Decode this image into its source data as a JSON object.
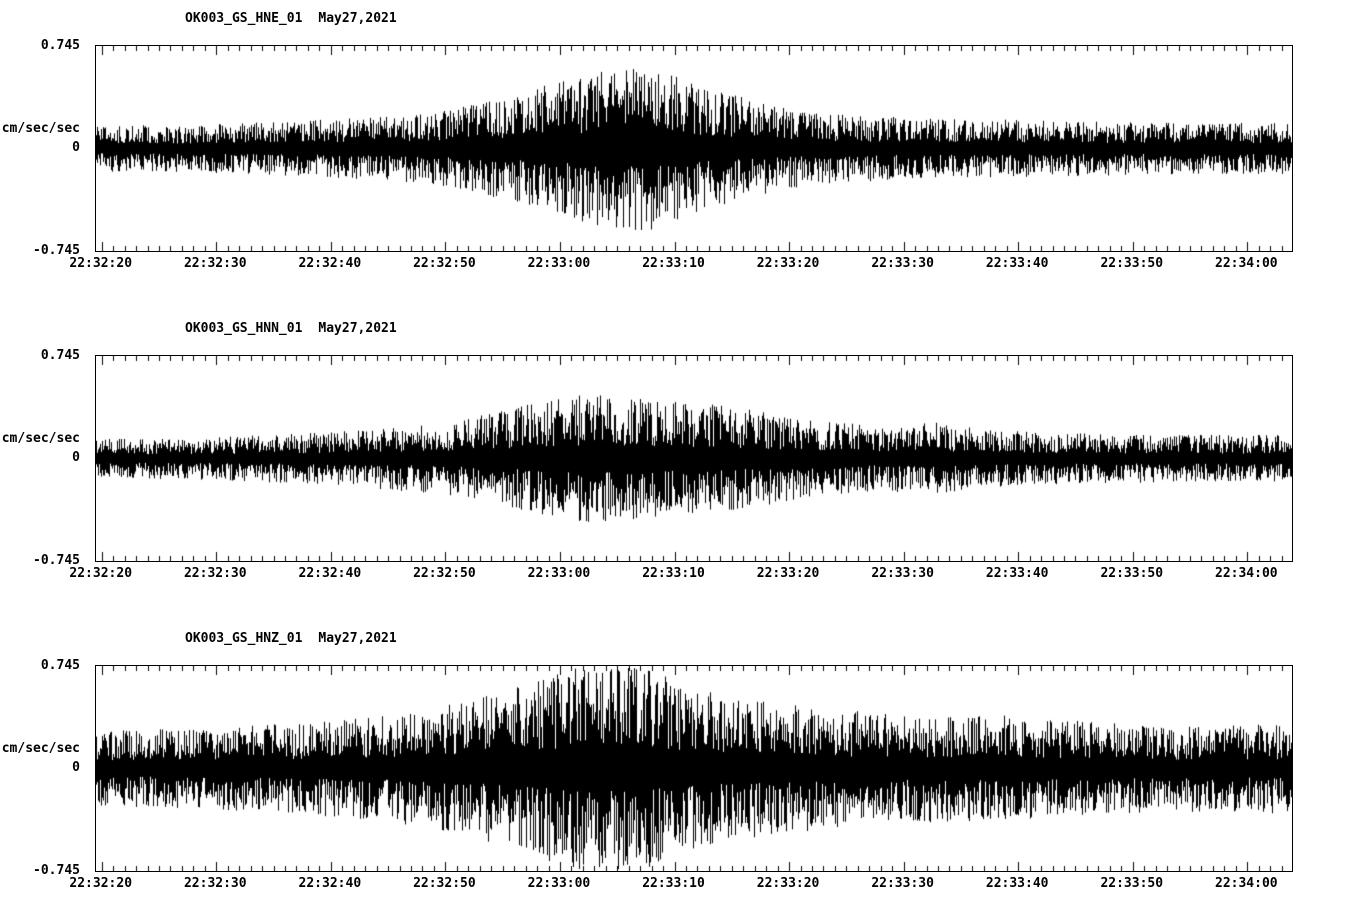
{
  "chart_data": {
    "type": "line",
    "kind": "seismogram-acceleration-traces",
    "background": "#ffffff",
    "trace_color": "#000000",
    "ylabel": "cm/sec/sec",
    "ylim": [
      -0.745,
      0.745
    ],
    "y_ticks": {
      "max": "0.745",
      "zero": "0",
      "min": "-0.745"
    },
    "axis": {
      "start_s": -0.5,
      "end_s": 103.9,
      "minor_tick_interval_s": 1,
      "major_tick_interval_s": 10
    },
    "x_tick_labels": [
      "22:32:20",
      "22:32:30",
      "22:32:40",
      "22:32:50",
      "22:33:00",
      "22:33:10",
      "22:33:20",
      "22:33:30",
      "22:33:40",
      "22:33:50",
      "22:34:00"
    ],
    "panels": [
      {
        "id": "hne",
        "title": "OK003_GS_HNE_01",
        "date": "May27,2021",
        "seed": 101,
        "envelope": [
          [
            0.0,
            0.22
          ],
          [
            0.08,
            0.22
          ],
          [
            0.15,
            0.25
          ],
          [
            0.25,
            0.3
          ],
          [
            0.32,
            0.42
          ],
          [
            0.38,
            0.6
          ],
          [
            0.42,
            0.72
          ],
          [
            0.46,
            0.78
          ],
          [
            0.5,
            0.6
          ],
          [
            0.55,
            0.45
          ],
          [
            0.6,
            0.33
          ],
          [
            0.7,
            0.28
          ],
          [
            0.8,
            0.26
          ],
          [
            0.9,
            0.24
          ],
          [
            1.0,
            0.24
          ]
        ]
      },
      {
        "id": "hnn",
        "title": "OK003_GS_HNN_01",
        "date": "May27,2021",
        "seed": 202,
        "envelope": [
          [
            0.0,
            0.18
          ],
          [
            0.1,
            0.2
          ],
          [
            0.2,
            0.25
          ],
          [
            0.3,
            0.35
          ],
          [
            0.36,
            0.5
          ],
          [
            0.42,
            0.62
          ],
          [
            0.46,
            0.55
          ],
          [
            0.52,
            0.5
          ],
          [
            0.58,
            0.4
          ],
          [
            0.65,
            0.3
          ],
          [
            0.7,
            0.34
          ],
          [
            0.74,
            0.28
          ],
          [
            0.8,
            0.24
          ],
          [
            0.9,
            0.22
          ],
          [
            1.0,
            0.22
          ]
        ]
      },
      {
        "id": "hnz",
        "title": "OK003_GS_HNZ_01",
        "date": "May27,2021",
        "seed": 303,
        "envelope": [
          [
            0.0,
            0.35
          ],
          [
            0.1,
            0.38
          ],
          [
            0.2,
            0.45
          ],
          [
            0.28,
            0.55
          ],
          [
            0.35,
            0.75
          ],
          [
            0.4,
            0.95
          ],
          [
            0.44,
            1.0
          ],
          [
            0.48,
            0.85
          ],
          [
            0.52,
            0.7
          ],
          [
            0.58,
            0.6
          ],
          [
            0.62,
            0.55
          ],
          [
            0.68,
            0.5
          ],
          [
            0.75,
            0.5
          ],
          [
            0.82,
            0.45
          ],
          [
            0.9,
            0.4
          ],
          [
            1.0,
            0.42
          ]
        ]
      }
    ]
  }
}
